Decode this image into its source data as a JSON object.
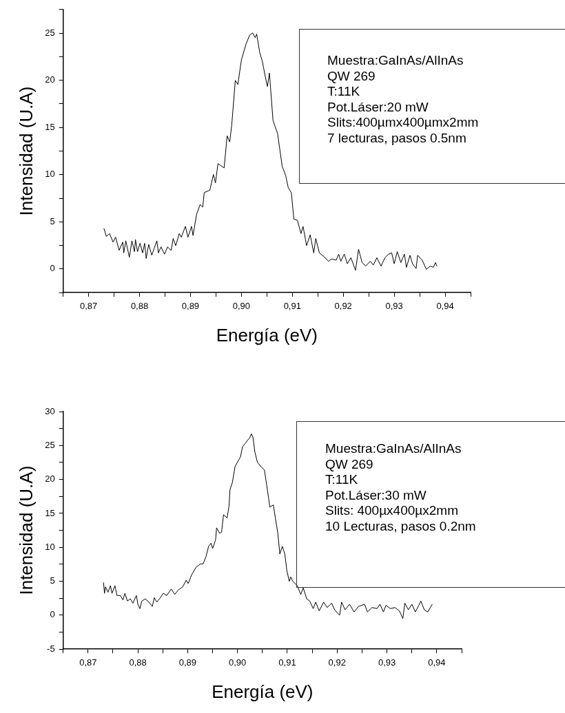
{
  "chart_data": [
    {
      "type": "line",
      "xlabel": "Energía (eV)",
      "ylabel": "Intensidad (U.A)",
      "color": "#000000",
      "marker": "none",
      "grid": false,
      "legend": false,
      "annotations": [
        "Muestra:GaInAs/AlInAs",
        "QW 269",
        "T:11K",
        "Pot.Láser:20 mW",
        "Slits:400µmx400µmx2mm",
        "7 lecturas, pasos 0.5nm"
      ],
      "xlim": [
        0.865,
        0.945
      ],
      "ylim": [
        -2.5,
        27.5
      ],
      "xticks": [
        {
          "value": 0.865,
          "label": null
        },
        {
          "value": 0.87,
          "label": "0,87"
        },
        {
          "value": 0.875,
          "label": null
        },
        {
          "value": 0.88,
          "label": "0,88"
        },
        {
          "value": 0.885,
          "label": null
        },
        {
          "value": 0.89,
          "label": "0,89"
        },
        {
          "value": 0.895,
          "label": null
        },
        {
          "value": 0.9,
          "label": "0,90"
        },
        {
          "value": 0.905,
          "label": null
        },
        {
          "value": 0.91,
          "label": "0,91"
        },
        {
          "value": 0.915,
          "label": null
        },
        {
          "value": 0.92,
          "label": "0,92"
        },
        {
          "value": 0.925,
          "label": null
        },
        {
          "value": 0.93,
          "label": "0,93"
        },
        {
          "value": 0.935,
          "label": null
        },
        {
          "value": 0.94,
          "label": "0,94"
        },
        {
          "value": 0.945,
          "label": null
        }
      ],
      "yticks": [
        {
          "value": -2.5,
          "label": null
        },
        0,
        {
          "value": 2.5,
          "label": null
        },
        5,
        {
          "value": 7.5,
          "label": null
        },
        10,
        {
          "value": 12.5,
          "label": null
        },
        15,
        {
          "value": 17.5,
          "label": null
        },
        20,
        {
          "value": 22.5,
          "label": null
        },
        25,
        {
          "value": 27.5,
          "label": null
        }
      ],
      "x": [
        0.873,
        0.8735,
        0.8741,
        0.8748,
        0.8753,
        0.876,
        0.8767,
        0.8769,
        0.8773,
        0.878,
        0.8785,
        0.879,
        0.8792,
        0.8796,
        0.8801,
        0.8806,
        0.881,
        0.8813,
        0.8818,
        0.8824,
        0.8828,
        0.8834,
        0.8837,
        0.8842,
        0.8849,
        0.8855,
        0.8862,
        0.8866,
        0.8871,
        0.8878,
        0.8882,
        0.889,
        0.8895,
        0.8902,
        0.8905,
        0.8912,
        0.8919,
        0.8924,
        0.8927,
        0.8938,
        0.8945,
        0.8949,
        0.8954,
        0.8966,
        0.8972,
        0.8977,
        0.8981,
        0.8988,
        0.8993,
        0.9,
        0.9009,
        0.9016,
        0.9022,
        0.9027,
        0.903,
        0.9036,
        0.9041,
        0.9046,
        0.9051,
        0.9055,
        0.9062,
        0.9066,
        0.9071,
        0.908,
        0.9087,
        0.9092,
        0.9098,
        0.9103,
        0.911,
        0.9117,
        0.9121,
        0.9128,
        0.9135,
        0.9142,
        0.9146,
        0.9153,
        0.9162,
        0.9171,
        0.9177,
        0.9186,
        0.9191,
        0.9195,
        0.9202,
        0.9208,
        0.9215,
        0.9224,
        0.923,
        0.9237,
        0.9244,
        0.9253,
        0.9259,
        0.9266,
        0.9274,
        0.9282,
        0.9289,
        0.9295,
        0.93,
        0.9306,
        0.9313,
        0.932,
        0.9324,
        0.9331,
        0.9336,
        0.9343,
        0.9346,
        0.9355,
        0.9363,
        0.9371,
        0.9377,
        0.9381,
        0.9384
      ],
      "values": [
        4.3,
        3.45,
        3.76,
        2.86,
        3.37,
        1.99,
        2.86,
        1.71,
        2.99,
        1.25,
        2.99,
        1.84,
        3.12,
        1.84,
        2.73,
        1.71,
        2.73,
        1.12,
        2.6,
        1.46,
        2.09,
        2.99,
        1.71,
        2.35,
        1.58,
        2.35,
        1.97,
        3.24,
        2.48,
        3.76,
        3.37,
        4.52,
        3.37,
        4.52,
        3.55,
        5.8,
        6.83,
        6.57,
        8.1,
        8.36,
        10.02,
        9.13,
        11.17,
        10.71,
        14.11,
        13.47,
        15.26,
        19.99,
        19.55,
        22.16,
        23.83,
        24.77,
        25.02,
        24.52,
        24.9,
        22.93,
        22.03,
        20.63,
        19.35,
        20.76,
        15.77,
        15.13,
        14.36,
        10.91,
        9.89,
        8.61,
        8.1,
        5.29,
        5.16,
        3.76,
        4.52,
        2.48,
        3.63,
        1.71,
        3.24,
        1.71,
        1.33,
        0.82,
        1.07,
        0.94,
        1.58,
        0.82,
        1.58,
        0.56,
        1.2,
        -0.13,
        2.09,
        0.69,
        0.31,
        0.82,
        0.43,
        1.2,
        0.31,
        1.2,
        1.58,
        1.71,
        0.56,
        1.84,
        0.69,
        1.58,
        0.18,
        1.46,
        0.56,
        0.05,
        1.46,
        0.94,
        -0.03,
        0.31,
        0.18,
        0.69,
        0.31
      ]
    },
    {
      "type": "line",
      "xlabel": "Energía (eV)",
      "ylabel": "Intensidad (U.A)",
      "color": "#000000",
      "marker": "none",
      "grid": false,
      "legend": false,
      "annotations": [
        "Muestra:GaInAs/AlInAs",
        "QW 269",
        "T:11K",
        "Pot.Láser:30 mW",
        "Slits: 400µx400µx2mm",
        "10 Lecturas, pasos 0.2nm"
      ],
      "xlim": [
        0.865,
        0.945
      ],
      "ylim": [
        -5,
        30
      ],
      "xticks": [
        {
          "value": 0.865,
          "label": null
        },
        {
          "value": 0.87,
          "label": "0,87"
        },
        {
          "value": 0.875,
          "label": null
        },
        {
          "value": 0.88,
          "label": "0,88"
        },
        {
          "value": 0.885,
          "label": null
        },
        {
          "value": 0.89,
          "label": "0,89"
        },
        {
          "value": 0.895,
          "label": null
        },
        {
          "value": 0.9,
          "label": "0,90"
        },
        {
          "value": 0.905,
          "label": null
        },
        {
          "value": 0.91,
          "label": "0,91"
        },
        {
          "value": 0.915,
          "label": null
        },
        {
          "value": 0.92,
          "label": "0,92"
        },
        {
          "value": 0.925,
          "label": null
        },
        {
          "value": 0.93,
          "label": "0,93"
        },
        {
          "value": 0.935,
          "label": null
        },
        {
          "value": 0.94,
          "label": "0,94"
        },
        {
          "value": 0.945,
          "label": null
        }
      ],
      "yticks": [
        -5,
        {
          "value": -2.5,
          "label": null
        },
        0,
        {
          "value": 2.5,
          "label": null
        },
        5,
        {
          "value": 7.5,
          "label": null
        },
        10,
        {
          "value": 12.5,
          "label": null
        },
        15,
        {
          "value": 17.5,
          "label": null
        },
        20,
        {
          "value": 22.5,
          "label": null
        },
        25,
        {
          "value": 27.5,
          "label": null
        },
        30
      ],
      "x": [
        0.8731,
        0.8733,
        0.8735,
        0.874,
        0.8745,
        0.8748,
        0.8754,
        0.8758,
        0.8765,
        0.877,
        0.8774,
        0.8779,
        0.8785,
        0.879,
        0.8797,
        0.88,
        0.8804,
        0.8808,
        0.8815,
        0.8822,
        0.8829,
        0.8833,
        0.8838,
        0.8845,
        0.8851,
        0.8858,
        0.8867,
        0.8874,
        0.8881,
        0.889,
        0.8897,
        0.8901,
        0.8908,
        0.8917,
        0.8926,
        0.8931,
        0.8937,
        0.8942,
        0.8947,
        0.895,
        0.8956,
        0.8958,
        0.8964,
        0.8968,
        0.8972,
        0.8979,
        0.8983,
        0.8985,
        0.899,
        0.8995,
        0.9001,
        0.9006,
        0.901,
        0.9015,
        0.902,
        0.9024,
        0.9028,
        0.9031,
        0.9035,
        0.904,
        0.9047,
        0.9054,
        0.906,
        0.9065,
        0.9072,
        0.9076,
        0.9081,
        0.9085,
        0.909,
        0.9095,
        0.9099,
        0.9104,
        0.9107,
        0.9111,
        0.912,
        0.9127,
        0.9132,
        0.9139,
        0.9145,
        0.9152,
        0.9157,
        0.9164,
        0.9173,
        0.918,
        0.9189,
        0.9195,
        0.9205,
        0.9209,
        0.9216,
        0.9225,
        0.9234,
        0.9243,
        0.9255,
        0.9261,
        0.927,
        0.928,
        0.9286,
        0.9293,
        0.9298,
        0.9307,
        0.9316,
        0.9325,
        0.9332,
        0.9336,
        0.9343,
        0.935,
        0.9357,
        0.9364,
        0.9368,
        0.9375,
        0.9382,
        0.9391
      ],
      "values": [
        4.83,
        3.22,
        4.18,
        3.38,
        4.35,
        3.22,
        4.35,
        2.9,
        2.9,
        2.25,
        3.22,
        2.09,
        2.41,
        1.77,
        2.9,
        1.61,
        0.97,
        2.09,
        2.41,
        1.93,
        1.29,
        2.57,
        1.93,
        2.57,
        3.22,
        2.9,
        3.86,
        3.06,
        3.7,
        4.18,
        5.15,
        4.67,
        5.95,
        7.08,
        7.56,
        7.56,
        8.69,
        10.14,
        10.62,
        9.82,
        11.1,
        12.87,
        12.07,
        12.23,
        14.81,
        14.32,
        16.09,
        18.51,
        19.63,
        21.89,
        22.69,
        23.33,
        24.78,
        25.27,
        25.75,
        26.07,
        26.71,
        26.23,
        23.98,
        22.53,
        21.89,
        21.4,
        18.51,
        15.93,
        16.25,
        14.32,
        12.07,
        9.01,
        10.14,
        9.01,
        6.6,
        4.99,
        5.63,
        4.99,
        4.35,
        3.06,
        4.02,
        2.41,
        2.09,
        0.97,
        1.93,
        0.64,
        1.93,
        1.13,
        1.77,
        0.8,
        0,
        1.93,
        0.8,
        1.61,
        0.48,
        1.29,
        1.61,
        0.48,
        1.13,
        0.97,
        1.61,
        0.48,
        1.45,
        0.97,
        1.13,
        0.64,
        -0.48,
        1.77,
        0.8,
        1.61,
        0.48,
        1.45,
        2.09,
        0.8,
        0.48,
        1.61
      ]
    }
  ]
}
